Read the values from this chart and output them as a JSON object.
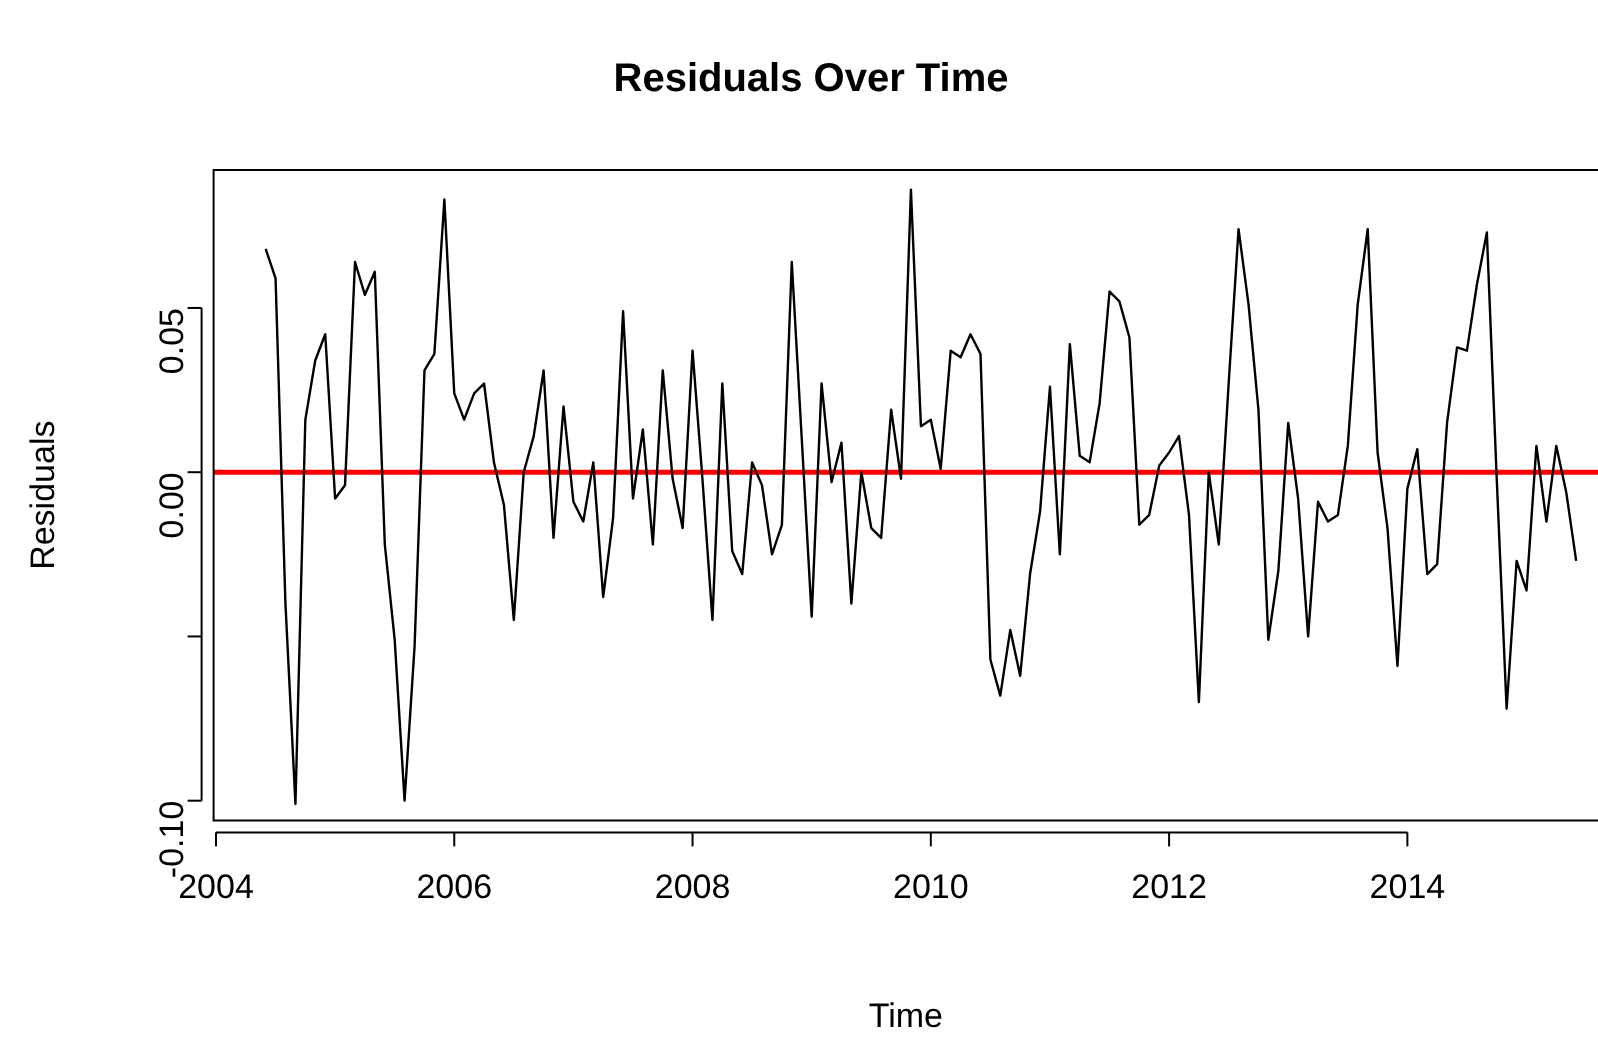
{
  "chart_data": {
    "type": "line",
    "title": "Residuals Over Time",
    "xlabel": "Time",
    "ylabel": "Residuals",
    "x": [
      2004.417,
      2004.5,
      2004.583,
      2004.667,
      2004.75,
      2004.833,
      2004.917,
      2005.0,
      2005.083,
      2005.167,
      2005.25,
      2005.333,
      2005.417,
      2005.5,
      2005.583,
      2005.667,
      2005.75,
      2005.833,
      2005.917,
      2006.0,
      2006.083,
      2006.167,
      2006.25,
      2006.333,
      2006.417,
      2006.5,
      2006.583,
      2006.667,
      2006.75,
      2006.833,
      2006.917,
      2007.0,
      2007.083,
      2007.167,
      2007.25,
      2007.333,
      2007.417,
      2007.5,
      2007.583,
      2007.667,
      2007.75,
      2007.833,
      2007.917,
      2008.0,
      2008.083,
      2008.167,
      2008.25,
      2008.333,
      2008.417,
      2008.5,
      2008.583,
      2008.667,
      2008.75,
      2008.833,
      2008.917,
      2009.0,
      2009.083,
      2009.167,
      2009.25,
      2009.333,
      2009.417,
      2009.5,
      2009.583,
      2009.667,
      2009.75,
      2009.833,
      2009.917,
      2010.0,
      2010.083,
      2010.167,
      2010.25,
      2010.333,
      2010.417,
      2010.5,
      2010.583,
      2010.667,
      2010.75,
      2010.833,
      2010.917,
      2011.0,
      2011.083,
      2011.167,
      2011.25,
      2011.333,
      2011.417,
      2011.5,
      2011.583,
      2011.667,
      2011.75,
      2011.833,
      2011.917,
      2012.0,
      2012.083,
      2012.167,
      2012.25,
      2012.333,
      2012.417,
      2012.5,
      2012.583,
      2012.667,
      2012.75,
      2012.833,
      2012.917,
      2013.0,
      2013.083,
      2013.167,
      2013.25,
      2013.333,
      2013.417,
      2013.5,
      2013.583,
      2013.667,
      2013.75,
      2013.833,
      2013.917,
      2014.0,
      2014.083,
      2014.167,
      2014.25,
      2014.333,
      2014.417,
      2014.5,
      2014.583,
      2014.667,
      2014.75,
      2014.833,
      2014.917,
      2015.0,
      2015.083,
      2015.167,
      2015.25,
      2015.333,
      2015.417
    ],
    "series": [
      {
        "color": "#000000",
        "values": [
          0.068,
          0.059,
          -0.04,
          -0.101,
          0.016,
          0.034,
          0.042,
          -0.008,
          -0.004,
          0.064,
          0.054,
          0.061,
          -0.022,
          -0.051,
          -0.1,
          -0.053,
          0.031,
          0.036,
          0.083,
          0.024,
          0.016,
          0.024,
          0.027,
          0.003,
          -0.01,
          -0.045,
          0.0,
          0.011,
          0.031,
          -0.02,
          0.02,
          -0.009,
          -0.015,
          0.003,
          -0.038,
          -0.014,
          0.049,
          -0.008,
          0.013,
          -0.022,
          0.031,
          -0.002,
          -0.017,
          0.037,
          -0.002,
          -0.045,
          0.027,
          -0.024,
          -0.031,
          0.003,
          -0.004,
          -0.025,
          -0.016,
          0.064,
          0.01,
          -0.044,
          0.027,
          -0.003,
          0.009,
          -0.04,
          0.0,
          -0.017,
          -0.02,
          0.019,
          -0.002,
          0.086,
          0.014,
          0.016,
          0.001,
          0.037,
          0.035,
          0.042,
          0.036,
          -0.057,
          -0.068,
          -0.048,
          -0.062,
          -0.031,
          -0.012,
          0.026,
          -0.025,
          0.039,
          0.005,
          0.003,
          0.021,
          0.055,
          0.052,
          0.041,
          -0.016,
          -0.013,
          0.002,
          0.006,
          0.011,
          -0.013,
          -0.07,
          0.0,
          -0.022,
          0.027,
          0.074,
          0.051,
          0.019,
          -0.051,
          -0.03,
          0.015,
          -0.008,
          -0.05,
          -0.009,
          -0.015,
          -0.013,
          0.008,
          0.051,
          0.074,
          0.006,
          -0.017,
          -0.059,
          -0.005,
          0.007,
          -0.031,
          -0.028,
          0.015,
          0.038,
          0.037,
          0.057,
          0.073,
          -0.002,
          -0.072,
          -0.027,
          -0.036,
          0.008,
          -0.015,
          0.008,
          -0.006,
          -0.027
        ]
      }
    ],
    "xlim": [
      2003.98,
      2015.6
    ],
    "xticks": [
      2004,
      2006,
      2008,
      2010,
      2012,
      2014
    ],
    "ylim": [
      -0.106,
      0.092
    ],
    "yticks": [
      {
        "value": -0.1,
        "label": "-0.10"
      },
      {
        "value": -0.05,
        "label": null
      },
      {
        "value": 0,
        "label": "0.00"
      },
      {
        "value": 0.05,
        "label": "0.05"
      }
    ],
    "ref_lines": [
      {
        "axis": "y",
        "value": 0,
        "color": "#ff0000"
      }
    ],
    "grid": false,
    "legend": false,
    "marker": "none",
    "line_style": "solid"
  }
}
